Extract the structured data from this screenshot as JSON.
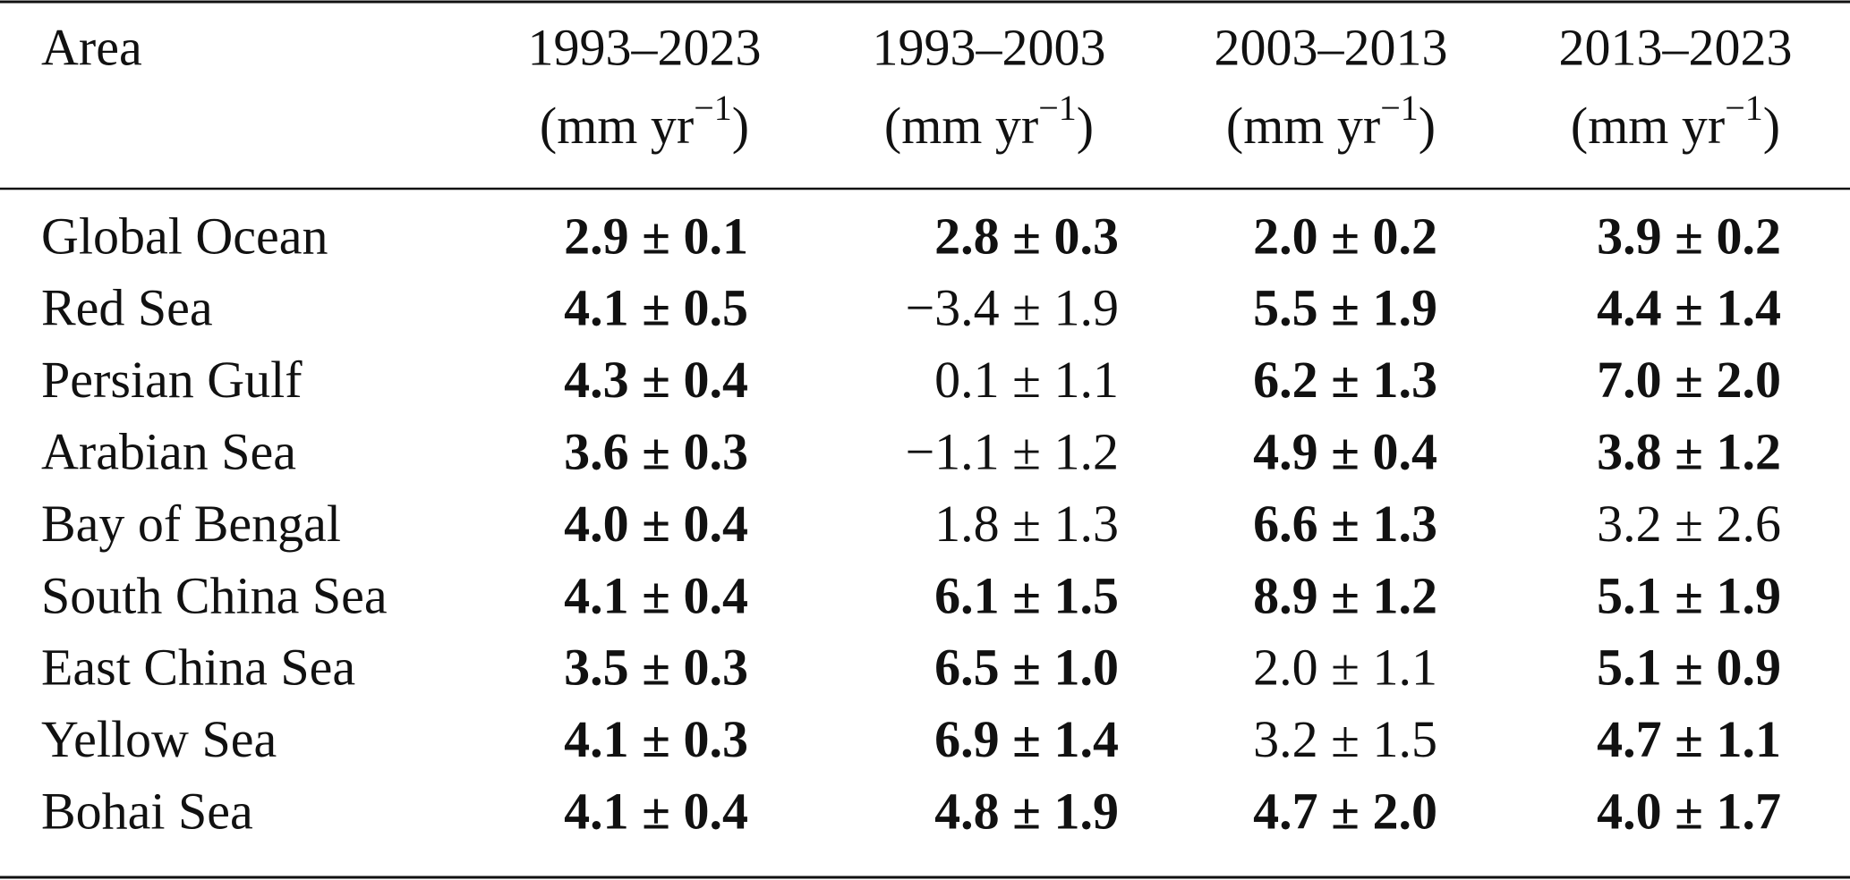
{
  "table": {
    "header": {
      "area": "Area",
      "columns": [
        {
          "period": "1993–2023",
          "unit": "(mm yr",
          "unit_exponent": "−1",
          "unit_close": ")"
        },
        {
          "period": "1993–2003",
          "unit": "(mm yr",
          "unit_exponent": "−1",
          "unit_close": ")"
        },
        {
          "period": "2003–2013",
          "unit": "(mm yr",
          "unit_exponent": "−1",
          "unit_close": ")"
        },
        {
          "period": "2013–2023",
          "unit": "(mm yr",
          "unit_exponent": "−1",
          "unit_close": ")"
        }
      ]
    },
    "rows": [
      {
        "area": "Global Ocean",
        "cells": [
          {
            "text": "2.9 ± 0.1",
            "bold": true
          },
          {
            "text": "2.8 ± 0.3",
            "bold": true
          },
          {
            "text": "2.0 ± 0.2",
            "bold": true
          },
          {
            "text": "3.9 ± 0.2",
            "bold": true
          }
        ]
      },
      {
        "area": "Red Sea",
        "cells": [
          {
            "text": "4.1 ± 0.5",
            "bold": true
          },
          {
            "text": "−3.4 ± 1.9",
            "bold": false
          },
          {
            "text": "5.5 ± 1.9",
            "bold": true
          },
          {
            "text": "4.4 ± 1.4",
            "bold": true
          }
        ]
      },
      {
        "area": "Persian Gulf",
        "cells": [
          {
            "text": "4.3 ± 0.4",
            "bold": true
          },
          {
            "text": "0.1 ± 1.1",
            "bold": false
          },
          {
            "text": "6.2 ± 1.3",
            "bold": true
          },
          {
            "text": "7.0 ± 2.0",
            "bold": true
          }
        ]
      },
      {
        "area": "Arabian Sea",
        "cells": [
          {
            "text": "3.6 ± 0.3",
            "bold": true
          },
          {
            "text": "−1.1 ± 1.2",
            "bold": false
          },
          {
            "text": "4.9 ± 0.4",
            "bold": true
          },
          {
            "text": "3.8 ± 1.2",
            "bold": true
          }
        ]
      },
      {
        "area": "Bay of Bengal",
        "cells": [
          {
            "text": "4.0 ± 0.4",
            "bold": true
          },
          {
            "text": "1.8 ± 1.3",
            "bold": false
          },
          {
            "text": "6.6 ± 1.3",
            "bold": true
          },
          {
            "text": "3.2 ± 2.6",
            "bold": false
          }
        ]
      },
      {
        "area": "South China Sea",
        "cells": [
          {
            "text": "4.1 ± 0.4",
            "bold": true
          },
          {
            "text": "6.1 ± 1.5",
            "bold": true
          },
          {
            "text": "8.9 ± 1.2",
            "bold": true
          },
          {
            "text": "5.1 ± 1.9",
            "bold": true
          }
        ]
      },
      {
        "area": "East China Sea",
        "cells": [
          {
            "text": "3.5 ± 0.3",
            "bold": true
          },
          {
            "text": "6.5 ± 1.0",
            "bold": true
          },
          {
            "text": "2.0 ± 1.1",
            "bold": false
          },
          {
            "text": "5.1 ± 0.9",
            "bold": true
          }
        ]
      },
      {
        "area": "Yellow Sea",
        "cells": [
          {
            "text": "4.1 ± 0.3",
            "bold": true
          },
          {
            "text": "6.9 ± 1.4",
            "bold": true
          },
          {
            "text": "3.2 ± 1.5",
            "bold": false
          },
          {
            "text": "4.7 ± 1.1",
            "bold": true
          }
        ]
      },
      {
        "area": "Bohai Sea",
        "cells": [
          {
            "text": "4.1 ± 0.4",
            "bold": true
          },
          {
            "text": "4.8 ± 1.9",
            "bold": true
          },
          {
            "text": "4.7 ± 2.0",
            "bold": true
          },
          {
            "text": "4.0 ± 1.7",
            "bold": true
          }
        ]
      }
    ]
  }
}
